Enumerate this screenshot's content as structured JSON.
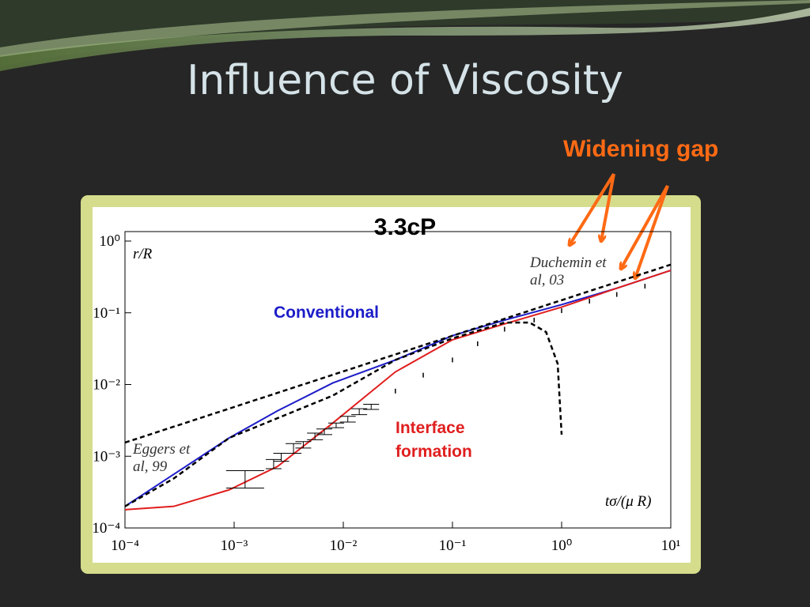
{
  "slide_title": "Influence of Viscosity",
  "chart_data": {
    "type": "line",
    "title": "3.3cP",
    "x_label": "tσ/(μ R)",
    "y_label": "r/R",
    "x_log": true,
    "y_log": true,
    "xlim": [
      0.0001,
      10
    ],
    "ylim": [
      0.0001,
      1
    ],
    "xticks": [
      {
        "value": 0.0001,
        "label": "10⁻⁴"
      },
      {
        "value": 0.001,
        "label": "10⁻³"
      },
      {
        "value": 0.01,
        "label": "10⁻²"
      },
      {
        "value": 0.1,
        "label": "10⁻¹"
      },
      {
        "value": 1,
        "label": "10⁰"
      },
      {
        "value": 10,
        "label": "10¹"
      }
    ],
    "yticks": [
      {
        "value": 0.0001,
        "label": "10⁻⁴"
      },
      {
        "value": 0.001,
        "label": "10⁻³"
      },
      {
        "value": 0.01,
        "label": "10⁻²"
      },
      {
        "value": 0.1,
        "label": "10⁻¹"
      },
      {
        "value": 1,
        "label": "10⁰"
      }
    ],
    "series": [
      {
        "name": "Conventional",
        "color": "#1c1cc8",
        "style": "solid",
        "x": [
          0.0001,
          0.00028,
          0.0009,
          0.0025,
          0.008,
          0.03,
          0.1,
          0.3,
          1,
          3.2,
          10
        ],
        "values": [
          0.0002,
          0.00056,
          0.0018,
          0.0043,
          0.0105,
          0.022,
          0.048,
          0.079,
          0.13,
          0.22,
          0.39
        ]
      },
      {
        "name": "Interface formation",
        "color": "#e01e1e",
        "style": "solid",
        "x": [
          0.0001,
          0.00028,
          0.0009,
          0.0025,
          0.008,
          0.03,
          0.1,
          0.3,
          1,
          3.2,
          10
        ],
        "values": [
          0.00018,
          0.0002,
          0.00034,
          0.00072,
          0.0029,
          0.015,
          0.042,
          0.07,
          0.12,
          0.22,
          0.39
        ]
      },
      {
        "color": "#000000",
        "style": "dashed",
        "x": [
          0.0001,
          10
        ],
        "values": [
          0.00155,
          0.47
        ]
      },
      {
        "color": "#000000",
        "style": "dashed",
        "x": [
          0.0001,
          0.00028,
          0.0009,
          0.008,
          0.03,
          0.1,
          0.3,
          0.51,
          0.72,
          0.92,
          1
        ],
        "values": [
          0.0002,
          0.00049,
          0.0018,
          0.007,
          0.022,
          0.044,
          0.073,
          0.073,
          0.054,
          0.0195,
          0.002
        ]
      }
    ],
    "error_points": {
      "color": "#000000",
      "x": [
        0.00126,
        0.0023,
        0.0027,
        0.0035,
        0.0043,
        0.0055,
        0.0067,
        0.0086,
        0.011,
        0.014,
        0.018
      ],
      "y_low": [
        0.00036,
        0.00067,
        0.00085,
        0.0011,
        0.0013,
        0.0017,
        0.002,
        0.0025,
        0.003,
        0.0038,
        0.0045
      ],
      "y_high": [
        0.00063,
        0.0009,
        0.0011,
        0.0015,
        0.0016,
        0.0021,
        0.0024,
        0.0029,
        0.0036,
        0.0046,
        0.0053
      ]
    },
    "dots": {
      "color": "#000000",
      "x": [
        0.03,
        0.054,
        0.1,
        0.17,
        0.3,
        0.56,
        1,
        1.8,
        3.2,
        5.8
      ],
      "values": [
        0.0081,
        0.0135,
        0.022,
        0.037,
        0.059,
        0.079,
        0.107,
        0.145,
        0.18,
        0.235
      ]
    },
    "annotations": [
      {
        "text": "Eggers et al, 99"
      },
      {
        "text": "Duchemin et al, 03"
      },
      {
        "text": "Widening gap",
        "color": "#ff6a14"
      }
    ]
  }
}
